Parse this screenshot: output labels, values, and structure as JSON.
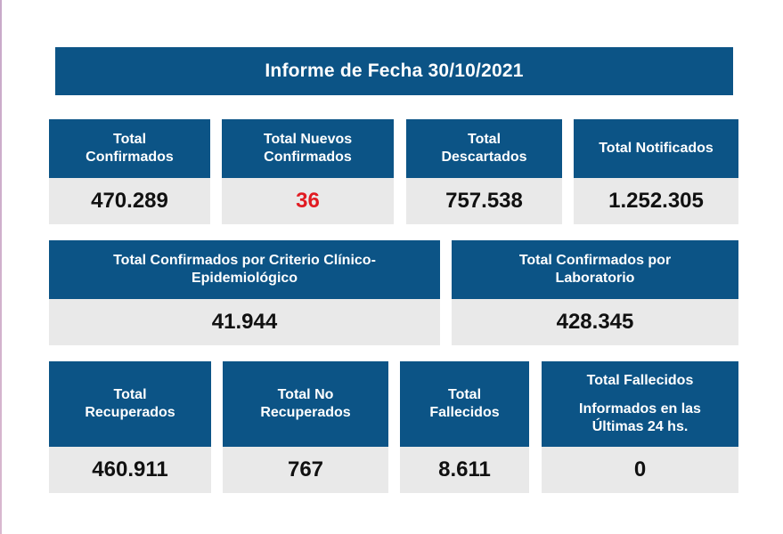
{
  "title": "Informe de Fecha 30/10/2021",
  "cards": [
    {
      "label_line1": "Total",
      "label_line2": "Confirmados",
      "value": "470.289"
    },
    {
      "label_line1": "Total Nuevos",
      "label_line2": "Confirmados",
      "value": "36",
      "value_color": "#e11b22"
    },
    {
      "label_line1": "Total",
      "label_line2": "Descartados",
      "value": "757.538"
    },
    {
      "label_line1": "Total Notificados",
      "value": "1.252.305"
    },
    {
      "label_line1": "Total Confirmados por Criterio Clínico-",
      "label_line2": "Epidemiológico",
      "value": "41.944"
    },
    {
      "label_line1": "Total Confirmados por",
      "label_line2": "Laboratorio",
      "value": "428.345"
    },
    {
      "label_line1": "Total",
      "label_line2": "Recuperados",
      "value": "460.911"
    },
    {
      "label_line1": "Total No",
      "label_line2": "Recuperados",
      "value": "767"
    },
    {
      "label_line1": "Total",
      "label_line2": "Fallecidos",
      "value": "8.611"
    },
    {
      "label_line1": "Total Fallecidos",
      "label_line2": "Informados en las",
      "label_line3": "Últimas 24 hs.",
      "value": "0"
    }
  ],
  "colors": {
    "header_bg": "#0c5486",
    "value_bg": "#e9e9e9",
    "highlight": "#e11b22"
  }
}
